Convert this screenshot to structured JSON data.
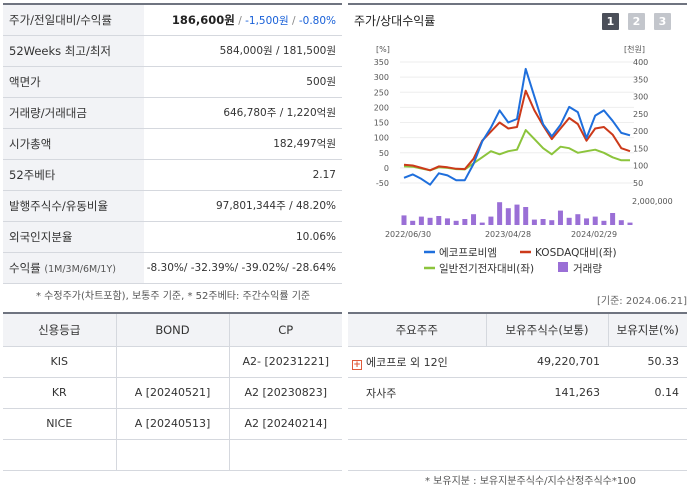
{
  "info": {
    "rows": [
      {
        "label": "주가/전일대비/수익률",
        "price": "186,600원",
        "sep1": "/",
        "change": "-1,500원",
        "sep2": "/",
        "rate": "-0.80%"
      },
      {
        "label": "52Weeks 최고/최저",
        "value": "584,000원 / 181,500원"
      },
      {
        "label": "액면가",
        "value": "500원"
      },
      {
        "label": "거래량/거래대금",
        "value": "646,780주 / 1,220억원"
      },
      {
        "label": "시가총액",
        "value": "182,497억원"
      },
      {
        "label": "52주베타",
        "value": "2.17"
      },
      {
        "label": "발행주식수/유동비율",
        "value": "97,801,344주 / 48.20%"
      },
      {
        "label": "외국인지분율",
        "value": "10.06%"
      },
      {
        "label": "수익률",
        "label_small": "(1M/3M/6M/1Y)",
        "value": "-8.30%/ -32.39%/ -39.02%/ -28.64%"
      }
    ],
    "note": "* 수정주가(차트포함), 보통주 기준, * 52주베타: 주간수익률 기준"
  },
  "date_note": "[기준: 2024.06.21]",
  "chart_panel": {
    "title": "주가/상대수익률",
    "pages": [
      "1",
      "2",
      "3"
    ]
  },
  "chart_data": {
    "type": "line",
    "left_axis_unit": "[%]",
    "right_axis_unit": "[천원]",
    "left_ticks": [
      "350",
      "300",
      "250",
      "200",
      "150",
      "100",
      "50",
      "0",
      "-50"
    ],
    "left_ylim": [
      -50,
      350
    ],
    "right_ticks": [
      "400",
      "350",
      "300",
      "250",
      "200",
      "150",
      "100",
      "50"
    ],
    "right_ylim": [
      50,
      400
    ],
    "volume_tick": "2,000,000",
    "x_labels": [
      "2022/06/30",
      "2023/04/28",
      "2024/02/29"
    ],
    "series": [
      {
        "name": "에코프로비엠",
        "color": "#1f6fdc",
        "axis": "right",
        "values": [
          65,
          75,
          62,
          45,
          78,
          72,
          58,
          58,
          105,
          170,
          210,
          260,
          225,
          235,
          380,
          300,
          220,
          185,
          218,
          270,
          255,
          180,
          245,
          260,
          230,
          195,
          188
        ]
      },
      {
        "name": "KOSDAQ대비(좌)",
        "color": "#cc3a1a",
        "axis": "left",
        "values": [
          10,
          8,
          0,
          -8,
          5,
          2,
          -3,
          -4,
          30,
          90,
          120,
          150,
          130,
          135,
          255,
          190,
          140,
          95,
          130,
          165,
          145,
          90,
          130,
          135,
          110,
          65,
          55
        ]
      },
      {
        "name": "일반전기전자대비(좌)",
        "color": "#8cc43c",
        "axis": "left",
        "values": [
          5,
          4,
          -2,
          -8,
          2,
          0,
          -4,
          -5,
          15,
          35,
          55,
          45,
          55,
          60,
          125,
          95,
          65,
          45,
          70,
          65,
          50,
          55,
          60,
          50,
          35,
          25,
          25
        ]
      }
    ],
    "volume": {
      "name": "거래량",
      "color": "#9a6fd6",
      "values": [
        800000,
        350000,
        700000,
        600000,
        750000,
        550000,
        350000,
        500000,
        900000,
        200000,
        700000,
        1900000,
        1400000,
        1700000,
        1500000,
        450000,
        500000,
        400000,
        1200000,
        600000,
        900000,
        550000,
        700000,
        350000,
        1000000,
        400000,
        200000
      ]
    }
  },
  "credit": {
    "headers": [
      "신용등급",
      "BOND",
      "CP"
    ],
    "rows": [
      {
        "agency": "KIS",
        "bond": "",
        "cp": "A2-  [20231221]"
      },
      {
        "agency": "KR",
        "bond": "A  [20240521]",
        "cp": "A2  [20230823]"
      },
      {
        "agency": "NICE",
        "bond": "A  [20240513]",
        "cp": "A2  [20240214]"
      },
      {
        "agency": "",
        "bond": "",
        "cp": ""
      }
    ]
  },
  "holders": {
    "headers": [
      "주요주주",
      "보유주식수(보통)",
      "보유지분(%)"
    ],
    "rows": [
      {
        "name": "에코프로 외 12인",
        "shares": "49,220,701",
        "pct": "50.33",
        "expandable": true
      },
      {
        "name": "자사주",
        "shares": "141,263",
        "pct": "0.14",
        "expandable": false
      },
      {
        "name": "",
        "shares": "",
        "pct": ""
      },
      {
        "name": "",
        "shares": "",
        "pct": ""
      }
    ],
    "note": "* 보유지분 : 보유지분주식수/지수산정주식수*100"
  }
}
